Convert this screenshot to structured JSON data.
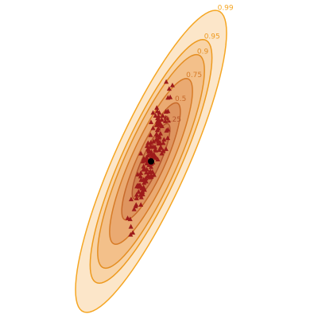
{
  "chart_data": {
    "type": "contour",
    "title": "",
    "xlabel": "",
    "ylabel": "",
    "grid": false,
    "legend": "none",
    "center": {
      "x": 0,
      "y": 0
    },
    "levels": [
      {
        "label": "0.99",
        "fill": "#FCE6C9",
        "stroke": "#F5A623",
        "radius": 3.035
      },
      {
        "label": "0.95",
        "fill": "#F8D3A6",
        "stroke": "#EE9A1E",
        "radius": 2.448
      },
      {
        "label": "0.9",
        "fill": "#F3C08A",
        "stroke": "#E48E22",
        "radius": 2.146
      },
      {
        "label": "0.75",
        "fill": "#EAAA72",
        "stroke": "#D77B26",
        "radius": 1.665
      },
      {
        "label": "0.5",
        "fill": "#DE9560",
        "stroke": "#C86A2A",
        "radius": 1.177
      },
      {
        "label": "0.25",
        "fill": "#D07E4E",
        "stroke": "#B5542B",
        "radius": 0.759
      }
    ],
    "points_color": "#9E1B1B",
    "center_color": "#000000",
    "points": [
      [
        0.6,
        1.0
      ],
      [
        0.0,
        0.79
      ],
      [
        0.68,
        1.01
      ],
      [
        -0.16,
        0.31
      ],
      [
        0.08,
        0.98
      ],
      [
        0.34,
        0.79
      ],
      [
        0.73,
        1.46
      ],
      [
        0.6,
        1.0
      ],
      [
        0.18,
        0.92
      ],
      [
        -0.49,
        -0.49
      ],
      [
        0.32,
        0.48
      ],
      [
        0.57,
        0.81
      ],
      [
        0.15,
        0.09
      ],
      [
        -0.2,
        -0.4
      ],
      [
        0.01,
        0.19
      ],
      [
        -0.81,
        -1.31
      ],
      [
        0.31,
        0.76
      ],
      [
        0.49,
        0.37
      ],
      [
        0.05,
        0.12
      ],
      [
        -0.37,
        -0.54
      ],
      [
        0.6,
        0.25
      ],
      [
        0.67,
        0.47
      ],
      [
        0.34,
        0.5
      ],
      [
        -0.29,
        0.06
      ],
      [
        0.33,
        0.23
      ],
      [
        -0.17,
        -0.04
      ],
      [
        0.07,
        -0.01
      ],
      [
        -0.06,
        -0.32
      ],
      [
        0.68,
        0.64
      ],
      [
        -0.23,
        0.02
      ],
      [
        0.21,
        0.44
      ],
      [
        -0.12,
        0.12
      ],
      [
        -0.03,
        -0.21
      ],
      [
        0.39,
        0.27
      ],
      [
        0.52,
        0.44
      ],
      [
        -0.8,
        -0.76
      ],
      [
        0.61,
        1.6
      ],
      [
        0.29,
        0.66
      ],
      [
        -0.84,
        -1.16
      ],
      [
        0.17,
        0.24
      ],
      [
        -0.1,
        -0.3
      ],
      [
        0.1,
        0.4
      ],
      [
        -0.6,
        -0.87
      ],
      [
        -0.26,
        -0.57
      ],
      [
        0.29,
        0.4
      ],
      [
        -0.3,
        -0.1
      ],
      [
        -0.82,
        -1.47
      ],
      [
        -0.01,
        0.38
      ],
      [
        0.01,
        -0.31
      ],
      [
        0.19,
        0.22
      ],
      [
        -0.68,
        -0.96
      ],
      [
        -0.02,
        0.29
      ],
      [
        0.25,
        1.01
      ],
      [
        0.07,
        -0.02
      ],
      [
        0.22,
        0.55
      ],
      [
        -0.16,
        0.05
      ],
      [
        -0.73,
        -1.43
      ],
      [
        -0.28,
        -0.43
      ],
      [
        -0.17,
        -0.16
      ],
      [
        0.08,
        0.3
      ],
      [
        0.3,
        0.36
      ],
      [
        -0.5,
        -0.61
      ],
      [
        0.23,
        1.08
      ],
      [
        -0.12,
        0.37
      ],
      [
        -0.07,
        -0.22
      ],
      [
        0.22,
        0.73
      ],
      [
        0.59,
        0.88
      ],
      [
        -0.05,
        0.03
      ],
      [
        -0.26,
        -0.16
      ],
      [
        -0.42,
        -0.3
      ],
      [
        0.7,
        0.82
      ],
      [
        -0.41,
        0.16
      ],
      [
        0.3,
        0.91
      ],
      [
        -0.14,
        0.0
      ],
      [
        0.77,
        1.29
      ],
      [
        -0.94,
        -1.14
      ],
      [
        -0.03,
        0.15
      ],
      [
        0.12,
        -0.27
      ],
      [
        0.43,
        0.84
      ],
      [
        0.86,
        1.53
      ],
      [
        0.38,
        0.56
      ],
      [
        -0.19,
        -0.22
      ],
      [
        -0.41,
        -0.23
      ],
      [
        0.47,
        0.92
      ],
      [
        -0.06,
        0.2
      ],
      [
        0.62,
        0.62
      ],
      [
        0.43,
        0.16
      ],
      [
        -0.21,
        -0.34
      ],
      [
        -0.37,
        -0.62
      ],
      [
        -0.58,
        -0.67
      ],
      [
        0.16,
        0.29
      ],
      [
        0.44,
        0.71
      ],
      [
        0.68,
        1.28
      ],
      [
        -0.3,
        -0.16
      ],
      [
        -0.13,
        -0.29
      ],
      [
        -0.54,
        -0.48
      ],
      [
        -0.3,
        -0.52
      ],
      [
        0.23,
        0.43
      ],
      [
        -0.33,
        -0.66
      ],
      [
        0.0,
        -0.11
      ],
      [
        0.39,
        0.29
      ],
      [
        -0.58,
        -0.74
      ],
      [
        -0.02,
        -0.2
      ],
      [
        0.01,
        0.09
      ],
      [
        0.34,
        0.36
      ],
      [
        0.49,
        0.21
      ],
      [
        -0.39,
        -0.72
      ],
      [
        -0.18,
        0.08
      ],
      [
        -0.53,
        -0.26
      ],
      [
        0.4,
        0.72
      ],
      [
        -0.09,
        0.2
      ],
      [
        0.25,
        0.52
      ],
      [
        0.33,
        0.98
      ],
      [
        -0.12,
        -0.04
      ],
      [
        0.64,
        0.87
      ],
      [
        0.25,
        0.8
      ],
      [
        -0.1,
        0.23
      ],
      [
        0.02,
        -0.04
      ],
      [
        0.0,
        -0.05
      ],
      [
        0.09,
        0.1
      ],
      [
        0.01,
        -0.28
      ],
      [
        -0.12,
        0.25
      ],
      [
        -0.31,
        -0.37
      ],
      [
        -0.08,
        -0.07
      ],
      [
        -0.62,
        -0.9
      ],
      [
        0.28,
        0.87
      ],
      [
        -0.08,
        -0.04
      ],
      [
        0.26,
        0.87
      ],
      [
        0.08,
        0.67
      ],
      [
        0.36,
        0.37
      ],
      [
        0.06,
        0.1
      ],
      [
        -0.41,
        -0.87
      ],
      [
        -0.48,
        -0.51
      ],
      [
        -0.31,
        -0.54
      ],
      [
        -0.47,
        -0.51
      ],
      [
        0.3,
        0.4
      ],
      [
        -0.02,
        0.53
      ],
      [
        0.21,
        0.07
      ],
      [
        -0.42,
        -0.67
      ],
      [
        0.27,
        0.04
      ],
      [
        -0.34,
        -0.61
      ],
      [
        0.12,
        0.14
      ],
      [
        0.32,
        0.83
      ],
      [
        -0.29,
        -0.37
      ],
      [
        0.36,
        0.38
      ],
      [
        0.06,
        -0.21
      ],
      [
        0.25,
        0.63
      ],
      [
        -0.33,
        0.0
      ],
      [
        -0.57,
        -0.5
      ],
      [
        -0.01,
        0.31
      ],
      [
        -0.48,
        -0.48
      ],
      [
        -0.44,
        -0.48
      ],
      [
        -0.4,
        -0.37
      ],
      [
        0.36,
        0.74
      ]
    ]
  }
}
